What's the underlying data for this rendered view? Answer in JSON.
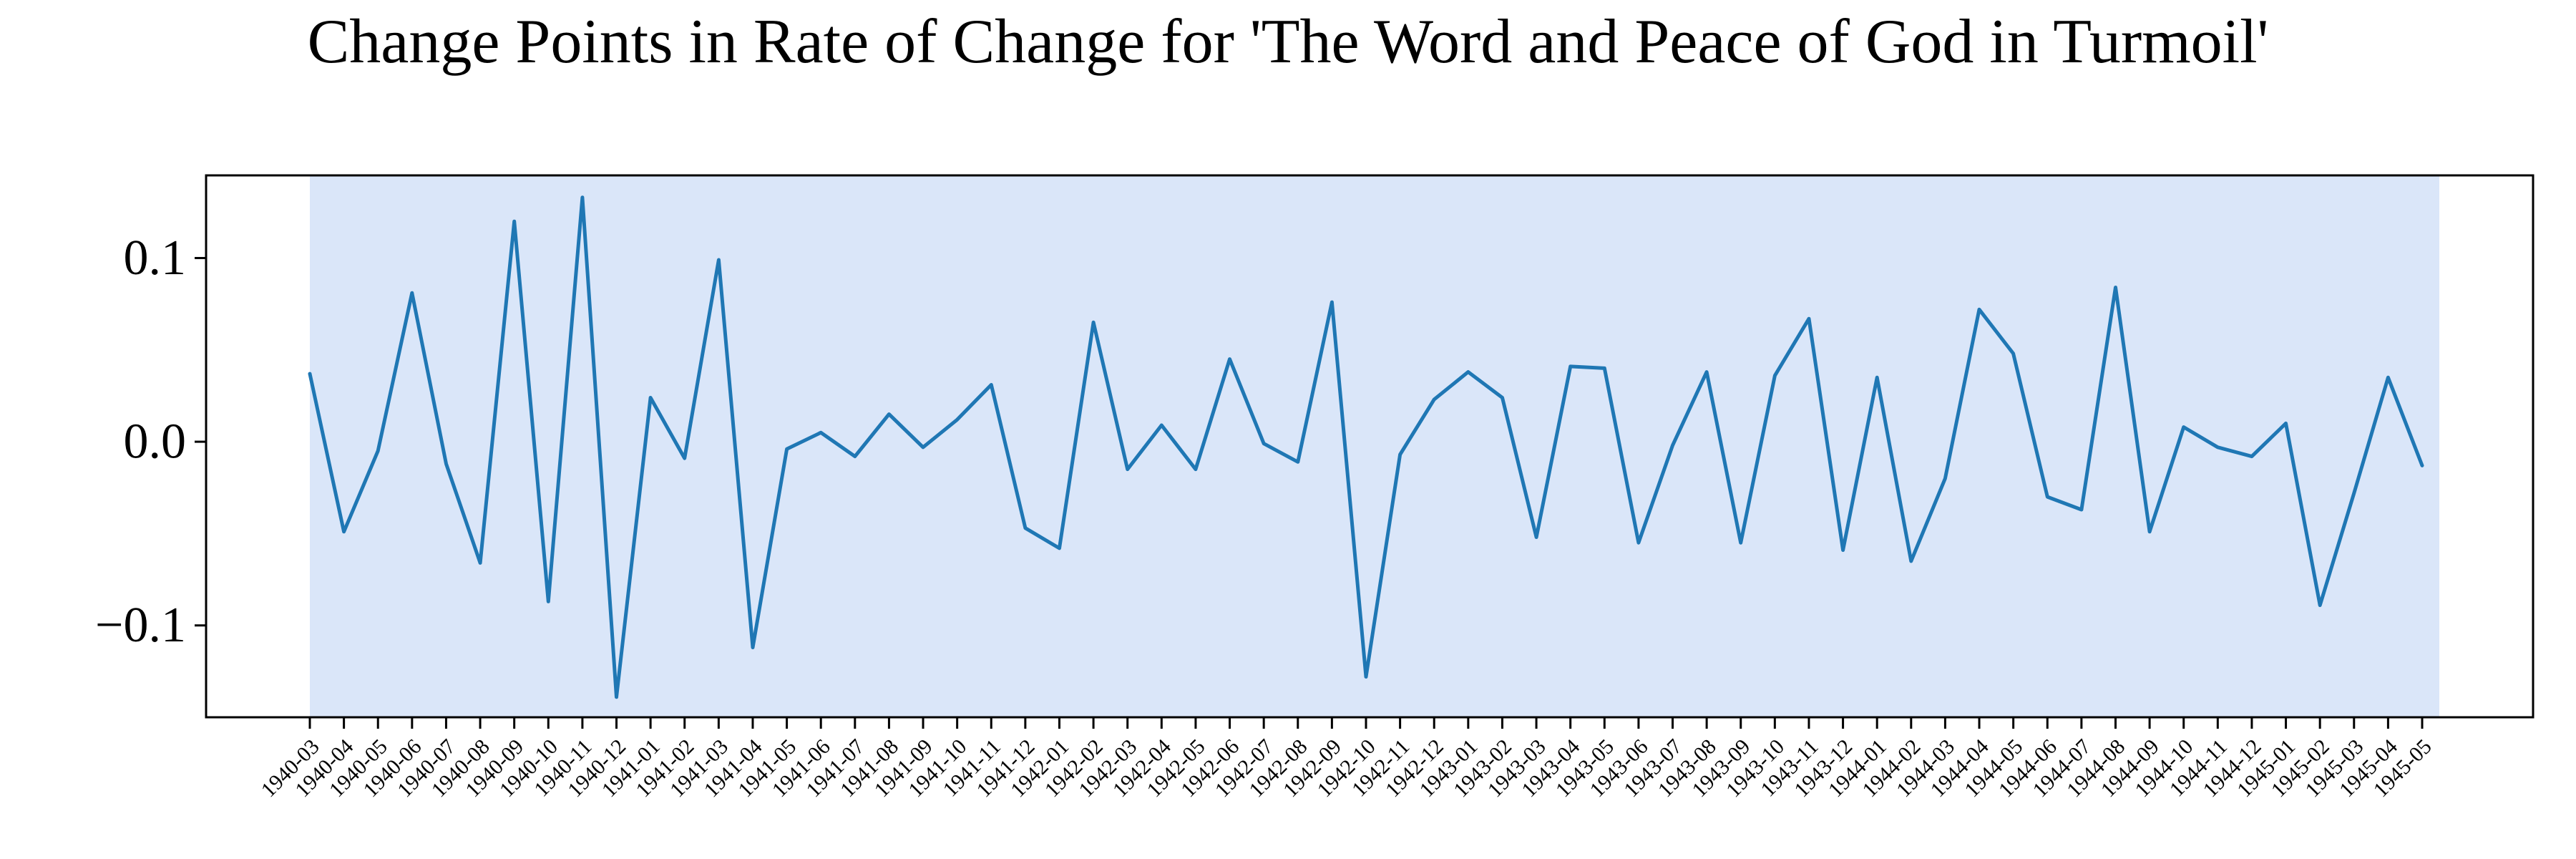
{
  "chart_data": {
    "type": "line",
    "title": "Change Points in Rate of Change for 'The Word and Peace of God in Turmoil'",
    "xlabel": "",
    "ylabel": "",
    "ylim": [
      -0.15,
      0.145
    ],
    "y_ticks": [
      "0.1",
      "0.0",
      "−0.1"
    ],
    "y_tick_values": [
      0.1,
      0.0,
      -0.1
    ],
    "grid": false,
    "legend": "none",
    "x": [
      "1940-03",
      "1940-04",
      "1940-05",
      "1940-06",
      "1940-07",
      "1940-08",
      "1940-09",
      "1940-10",
      "1940-11",
      "1940-12",
      "1941-01",
      "1941-02",
      "1941-03",
      "1941-04",
      "1941-05",
      "1941-06",
      "1941-07",
      "1941-08",
      "1941-09",
      "1941-10",
      "1941-11",
      "1941-12",
      "1942-01",
      "1942-02",
      "1942-03",
      "1942-04",
      "1942-05",
      "1942-06",
      "1942-07",
      "1942-08",
      "1942-09",
      "1942-10",
      "1942-11",
      "1942-12",
      "1943-01",
      "1943-02",
      "1943-03",
      "1943-04",
      "1943-05",
      "1943-06",
      "1943-07",
      "1943-08",
      "1943-09",
      "1943-10",
      "1943-11",
      "1943-12",
      "1944-01",
      "1944-02",
      "1944-03",
      "1944-04",
      "1944-05",
      "1944-06",
      "1944-07",
      "1944-08",
      "1944-09",
      "1944-10",
      "1944-11",
      "1944-12",
      "1945-01",
      "1945-02",
      "1945-03",
      "1945-04",
      "1945-05"
    ],
    "series": [
      {
        "values": [
          0.037,
          -0.049,
          -0.005,
          0.081,
          -0.012,
          -0.066,
          0.12,
          -0.087,
          0.133,
          -0.139,
          0.024,
          -0.009,
          0.099,
          -0.112,
          -0.004,
          0.005,
          -0.008,
          0.015,
          -0.003,
          0.012,
          0.031,
          -0.047,
          -0.058,
          0.065,
          -0.015,
          0.009,
          -0.015,
          0.045,
          -0.001,
          -0.011,
          0.076,
          -0.128,
          -0.007,
          0.023,
          0.038,
          0.024,
          -0.052,
          0.041,
          0.04,
          -0.055,
          -0.002,
          0.038,
          -0.055,
          0.036,
          0.067,
          -0.059,
          0.035,
          -0.065,
          -0.02,
          0.072,
          0.048,
          -0.03,
          -0.037,
          0.084,
          -0.049,
          0.008,
          -0.003,
          -0.008,
          0.01,
          -0.089,
          -0.028,
          0.035,
          -0.013
        ]
      }
    ],
    "colors": {
      "line": "#1f77b4",
      "shaded_region": "#dae6f9"
    },
    "shaded_region": [
      "1940-03",
      "1945-05"
    ]
  }
}
